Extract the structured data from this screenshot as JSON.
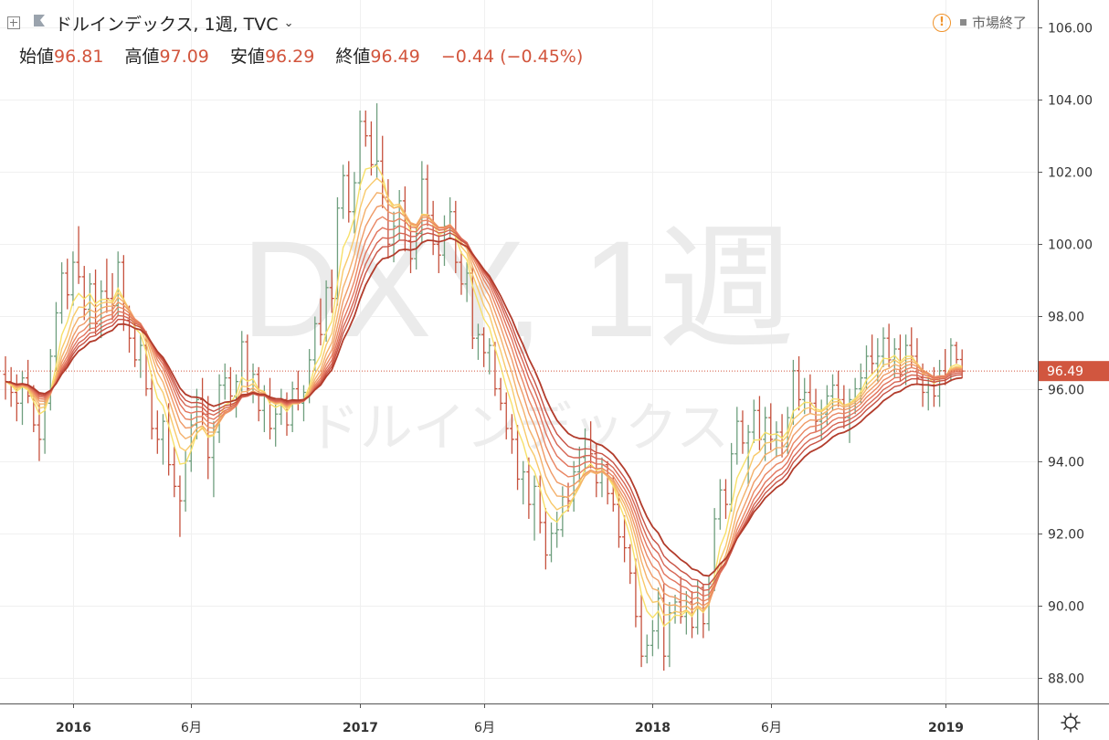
{
  "header": {
    "title": "ドルインデックス, 1週, TVC",
    "ohlc": [
      {
        "label": "始値",
        "value": "96.81"
      },
      {
        "label": "高値",
        "value": "97.09"
      },
      {
        "label": "安値",
        "value": "96.29"
      },
      {
        "label": "終値",
        "value": "96.49"
      }
    ],
    "change": "−0.44 (−0.45%)",
    "status": "市場終了"
  },
  "watermark": {
    "big": "DXY, 1週",
    "small": "ドルインデックス"
  },
  "colors": {
    "up": "#6f9f7e",
    "down": "#c6513d",
    "price_label_bg": "#d1563f",
    "ma_ribbon": [
      "#f7e06a",
      "#f8c96a",
      "#f4b06a",
      "#ef9a66",
      "#e98663",
      "#e2745d",
      "#d66553",
      "#c85244",
      "#b23c2c"
    ]
  },
  "chart_data": {
    "type": "candlestick",
    "title": "DXY, 1週",
    "subtitle": "ドルインデックス",
    "timeframe": "1週",
    "last_price": 96.49,
    "ylim": [
      87.3,
      106.5
    ],
    "yticks": [
      "88.00",
      "90.00",
      "92.00",
      "94.00",
      "96.00",
      "98.00",
      "100.00",
      "102.00",
      "104.00",
      "106.00"
    ],
    "xticks": [
      {
        "label": "2016",
        "index": 12,
        "bold": true
      },
      {
        "label": "6月",
        "index": 33,
        "bold": false
      },
      {
        "label": "2017",
        "index": 63,
        "bold": true
      },
      {
        "label": "6月",
        "index": 85,
        "bold": false
      },
      {
        "label": "2018",
        "index": 115,
        "bold": true
      },
      {
        "label": "6月",
        "index": 136,
        "bold": false
      },
      {
        "label": "2019",
        "index": 167,
        "bold": true
      }
    ],
    "ohlc": [
      [
        96.4,
        96.9,
        95.7,
        96.2
      ],
      [
        96.2,
        96.6,
        95.5,
        95.9
      ],
      [
        95.9,
        96.4,
        95.1,
        95.6
      ],
      [
        95.6,
        96.5,
        95.0,
        96.3
      ],
      [
        96.3,
        96.8,
        95.6,
        95.8
      ],
      [
        95.8,
        96.1,
        94.8,
        95.0
      ],
      [
        95.0,
        95.6,
        94.0,
        94.6
      ],
      [
        94.6,
        95.8,
        94.2,
        95.6
      ],
      [
        95.6,
        97.1,
        95.4,
        96.9
      ],
      [
        96.9,
        98.4,
        96.5,
        98.1
      ],
      [
        98.1,
        99.5,
        97.8,
        99.2
      ],
      [
        99.2,
        99.6,
        98.2,
        98.6
      ],
      [
        98.6,
        99.8,
        98.3,
        99.5
      ],
      [
        99.5,
        100.5,
        98.9,
        99.1
      ],
      [
        99.1,
        99.4,
        97.9,
        98.2
      ],
      [
        98.2,
        99.2,
        97.6,
        98.9
      ],
      [
        98.9,
        99.3,
        97.5,
        97.8
      ],
      [
        97.8,
        99.0,
        97.4,
        98.7
      ],
      [
        98.7,
        99.6,
        98.1,
        98.5
      ],
      [
        98.5,
        99.2,
        97.9,
        98.3
      ],
      [
        98.3,
        99.8,
        98.0,
        99.5
      ],
      [
        99.5,
        99.7,
        97.6,
        97.9
      ],
      [
        97.9,
        98.3,
        97.0,
        97.4
      ],
      [
        97.4,
        97.9,
        96.6,
        96.8
      ],
      [
        96.8,
        97.5,
        96.3,
        97.2
      ],
      [
        97.2,
        97.6,
        95.8,
        96.0
      ],
      [
        96.0,
        96.4,
        94.6,
        94.9
      ],
      [
        94.9,
        95.4,
        94.2,
        94.6
      ],
      [
        94.6,
        95.3,
        93.9,
        95.1
      ],
      [
        95.1,
        95.6,
        93.6,
        93.9
      ],
      [
        93.9,
        94.4,
        93.0,
        93.3
      ],
      [
        93.3,
        93.6,
        91.9,
        92.9
      ],
      [
        92.9,
        94.3,
        92.6,
        94.0
      ],
      [
        94.0,
        95.3,
        93.7,
        95.0
      ],
      [
        95.0,
        96.0,
        94.6,
        95.7
      ],
      [
        95.7,
        96.3,
        95.0,
        95.3
      ],
      [
        95.3,
        95.8,
        93.5,
        94.1
      ],
      [
        94.1,
        95.1,
        93.0,
        94.8
      ],
      [
        94.8,
        96.4,
        94.5,
        96.1
      ],
      [
        96.1,
        96.7,
        95.7,
        96.3
      ],
      [
        96.3,
        96.6,
        95.5,
        95.8
      ],
      [
        95.8,
        96.4,
        95.2,
        96.2
      ],
      [
        96.2,
        97.6,
        95.9,
        97.3
      ],
      [
        97.3,
        97.5,
        95.8,
        96.0
      ],
      [
        96.0,
        96.7,
        95.6,
        96.4
      ],
      [
        96.4,
        96.6,
        95.1,
        95.4
      ],
      [
        95.4,
        96.1,
        94.8,
        95.8
      ],
      [
        95.8,
        96.3,
        94.6,
        94.9
      ],
      [
        94.9,
        95.6,
        94.4,
        95.3
      ],
      [
        95.3,
        96.0,
        95.0,
        95.7
      ],
      [
        95.7,
        95.9,
        94.7,
        95.0
      ],
      [
        95.0,
        96.2,
        94.8,
        96.0
      ],
      [
        96.0,
        96.5,
        95.4,
        95.6
      ],
      [
        95.6,
        96.1,
        95.1,
        95.9
      ],
      [
        95.9,
        97.1,
        95.6,
        96.8
      ],
      [
        96.8,
        98.0,
        96.5,
        97.8
      ],
      [
        97.8,
        98.5,
        97.2,
        97.5
      ],
      [
        97.5,
        99.0,
        97.3,
        98.8
      ],
      [
        98.8,
        99.3,
        98.1,
        98.5
      ],
      [
        98.5,
        101.3,
        98.3,
        101.0
      ],
      [
        101.0,
        102.2,
        100.7,
        101.9
      ],
      [
        101.9,
        102.3,
        100.6,
        100.9
      ],
      [
        100.9,
        102.0,
        100.3,
        101.7
      ],
      [
        101.7,
        103.7,
        101.5,
        103.4
      ],
      [
        103.4,
        103.7,
        102.7,
        103.0
      ],
      [
        103.0,
        103.4,
        101.9,
        102.2
      ],
      [
        102.2,
        103.9,
        101.8,
        102.3
      ],
      [
        102.3,
        103.0,
        101.0,
        101.3
      ],
      [
        101.3,
        101.8,
        99.6,
        100.0
      ],
      [
        100.0,
        100.9,
        99.5,
        100.5
      ],
      [
        100.5,
        101.5,
        100.1,
        101.2
      ],
      [
        101.2,
        101.6,
        99.8,
        100.1
      ],
      [
        100.1,
        100.6,
        99.2,
        99.6
      ],
      [
        99.6,
        100.5,
        99.3,
        100.3
      ],
      [
        100.3,
        102.3,
        100.0,
        101.8
      ],
      [
        101.8,
        102.2,
        100.5,
        100.8
      ],
      [
        100.8,
        101.2,
        99.7,
        100.0
      ],
      [
        100.0,
        100.3,
        99.2,
        99.7
      ],
      [
        99.7,
        100.8,
        99.4,
        100.5
      ],
      [
        100.5,
        101.3,
        100.2,
        100.9
      ],
      [
        100.9,
        101.2,
        99.2,
        99.5
      ],
      [
        99.5,
        99.8,
        98.6,
        98.9
      ],
      [
        98.9,
        99.5,
        98.4,
        99.2
      ],
      [
        99.2,
        99.4,
        97.1,
        97.4
      ],
      [
        97.4,
        97.8,
        96.8,
        97.5
      ],
      [
        97.5,
        97.7,
        96.6,
        97.0
      ],
      [
        97.0,
        97.4,
        96.4,
        97.2
      ],
      [
        97.2,
        97.3,
        95.8,
        96.0
      ],
      [
        96.0,
        96.3,
        95.4,
        95.6
      ],
      [
        95.6,
        95.9,
        94.6,
        94.9
      ],
      [
        94.9,
        95.3,
        94.2,
        94.6
      ],
      [
        94.6,
        95.0,
        93.2,
        93.5
      ],
      [
        93.5,
        94.0,
        92.8,
        93.7
      ],
      [
        93.7,
        94.1,
        92.4,
        92.8
      ],
      [
        92.8,
        93.6,
        91.8,
        93.3
      ],
      [
        93.3,
        93.6,
        92.0,
        92.3
      ],
      [
        92.3,
        92.7,
        91.0,
        91.4
      ],
      [
        91.4,
        92.3,
        91.2,
        92.0
      ],
      [
        92.0,
        92.6,
        91.6,
        92.1
      ],
      [
        92.1,
        93.3,
        91.9,
        93.0
      ],
      [
        93.0,
        93.4,
        92.6,
        92.9
      ],
      [
        92.9,
        94.0,
        92.6,
        93.7
      ],
      [
        93.7,
        94.4,
        93.4,
        94.1
      ],
      [
        94.1,
        94.9,
        93.7,
        94.6
      ],
      [
        94.6,
        95.1,
        93.8,
        94.2
      ],
      [
        94.2,
        94.5,
        93.0,
        93.4
      ],
      [
        93.4,
        94.1,
        93.0,
        93.9
      ],
      [
        93.9,
        94.0,
        92.8,
        93.1
      ],
      [
        93.1,
        93.6,
        92.6,
        92.8
      ],
      [
        92.8,
        93.1,
        91.6,
        91.9
      ],
      [
        91.9,
        92.5,
        91.2,
        91.6
      ],
      [
        91.6,
        91.7,
        90.6,
        90.9
      ],
      [
        90.9,
        91.3,
        89.4,
        89.7
      ],
      [
        89.7,
        90.3,
        88.3,
        88.6
      ],
      [
        88.6,
        89.2,
        88.4,
        88.9
      ],
      [
        88.9,
        89.6,
        88.6,
        89.3
      ],
      [
        89.3,
        90.5,
        88.8,
        90.2
      ],
      [
        90.2,
        90.6,
        88.2,
        88.6
      ],
      [
        88.6,
        90.1,
        88.3,
        89.8
      ],
      [
        89.8,
        90.3,
        89.5,
        90.1
      ],
      [
        90.1,
        90.8,
        89.5,
        89.7
      ],
      [
        89.7,
        90.4,
        89.2,
        90.1
      ],
      [
        90.1,
        90.4,
        89.1,
        89.4
      ],
      [
        89.4,
        90.7,
        89.2,
        90.5
      ],
      [
        90.5,
        90.6,
        89.1,
        89.5
      ],
      [
        89.5,
        90.8,
        89.3,
        90.6
      ],
      [
        90.6,
        92.7,
        90.4,
        92.4
      ],
      [
        92.4,
        93.5,
        92.1,
        93.2
      ],
      [
        93.2,
        93.5,
        92.4,
        92.8
      ],
      [
        92.8,
        94.5,
        92.6,
        94.2
      ],
      [
        94.2,
        95.5,
        93.9,
        95.1
      ],
      [
        95.1,
        95.4,
        94.2,
        94.5
      ],
      [
        94.5,
        95.0,
        93.3,
        94.8
      ],
      [
        94.8,
        95.7,
        94.5,
        95.4
      ],
      [
        95.4,
        95.8,
        94.3,
        94.6
      ],
      [
        94.6,
        95.5,
        94.0,
        95.2
      ],
      [
        95.2,
        95.6,
        94.3,
        94.6
      ],
      [
        94.6,
        95.1,
        94.1,
        94.8
      ],
      [
        94.8,
        95.3,
        94.1,
        94.4
      ],
      [
        94.4,
        95.5,
        94.2,
        95.2
      ],
      [
        95.2,
        96.8,
        95.0,
        96.5
      ],
      [
        96.5,
        96.9,
        95.4,
        95.7
      ],
      [
        95.7,
        96.3,
        95.3,
        95.9
      ],
      [
        95.9,
        96.4,
        95.3,
        95.6
      ],
      [
        95.6,
        96.0,
        94.8,
        95.1
      ],
      [
        95.1,
        95.7,
        94.6,
        95.3
      ],
      [
        95.3,
        96.1,
        95.0,
        95.8
      ],
      [
        95.8,
        96.4,
        95.4,
        96.1
      ],
      [
        96.1,
        96.5,
        95.5,
        95.7
      ],
      [
        95.7,
        96.1,
        94.9,
        95.2
      ],
      [
        95.2,
        96.0,
        94.5,
        95.7
      ],
      [
        95.7,
        96.3,
        95.3,
        96.0
      ],
      [
        96.0,
        96.7,
        95.6,
        96.3
      ],
      [
        96.3,
        97.2,
        96.0,
        96.9
      ],
      [
        96.9,
        97.5,
        96.4,
        96.7
      ],
      [
        96.7,
        97.4,
        96.2,
        96.9
      ],
      [
        96.9,
        97.7,
        96.6,
        97.4
      ],
      [
        97.4,
        97.8,
        96.6,
        96.8
      ],
      [
        96.8,
        97.4,
        96.3,
        97.1
      ],
      [
        97.1,
        97.5,
        96.2,
        96.4
      ],
      [
        96.4,
        97.5,
        96.1,
        97.2
      ],
      [
        97.2,
        97.7,
        96.6,
        96.9
      ],
      [
        96.9,
        97.4,
        96.1,
        96.3
      ],
      [
        96.3,
        96.7,
        95.5,
        95.9
      ],
      [
        95.9,
        96.4,
        95.4,
        96.1
      ],
      [
        96.1,
        96.6,
        95.5,
        95.8
      ],
      [
        95.8,
        96.8,
        95.5,
        96.5
      ],
      [
        96.5,
        97.1,
        96.1,
        96.4
      ],
      [
        96.4,
        97.4,
        96.2,
        97.2
      ],
      [
        97.2,
        97.3,
        96.7,
        96.81
      ],
      [
        96.81,
        97.09,
        96.29,
        96.49
      ]
    ]
  }
}
